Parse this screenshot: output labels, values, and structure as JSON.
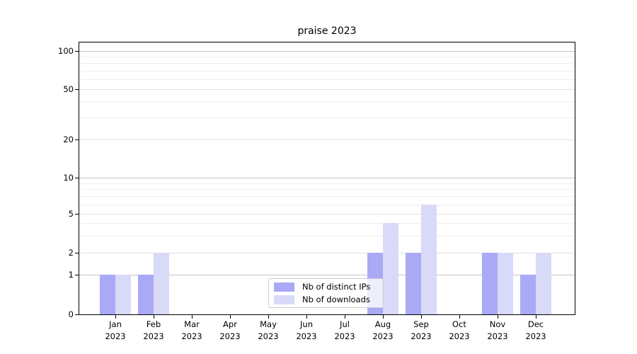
{
  "window": {
    "background": "#ffffff"
  },
  "chart_data": {
    "type": "bar",
    "title": "praise 2023",
    "categories": [
      "Jan 2023",
      "Feb 2023",
      "Mar 2023",
      "Apr 2023",
      "May 2023",
      "Jun 2023",
      "Jul 2023",
      "Aug 2023",
      "Sep 2023",
      "Oct 2023",
      "Nov 2023",
      "Dec 2023"
    ],
    "series": [
      {
        "name": "Nb of distinct IPs",
        "color": "#a9a9f6",
        "values": [
          1,
          1,
          0,
          0,
          0,
          0,
          0,
          2,
          2,
          0,
          2,
          1
        ]
      },
      {
        "name": "Nb of downloads",
        "color": "#d9d9f8",
        "values": [
          1,
          2,
          0,
          0,
          0,
          0,
          0,
          4,
          6,
          0,
          2,
          2
        ]
      }
    ],
    "yscale": "symlog",
    "ylim": [
      0,
      120
    ],
    "y_ticks": [
      0,
      1,
      2,
      5,
      10,
      20,
      50,
      100
    ],
    "y_tick_labels": [
      "0",
      "1",
      "2",
      "5",
      "10",
      "20",
      "50",
      "100"
    ],
    "y_minor_ticks": [
      3,
      4,
      6,
      7,
      8,
      9,
      30,
      40,
      60,
      70,
      80,
      90
    ],
    "xlabel": "",
    "ylabel": "",
    "grid": true,
    "legend_position": "lower center"
  },
  "legend": {
    "items": [
      {
        "label": "Nb of distinct IPs",
        "color": "#a9a9f6"
      },
      {
        "label": "Nb of downloads",
        "color": "#d9d9f8"
      }
    ]
  },
  "colors": {
    "bar_distinct_ips": "#a9a9f6",
    "bar_downloads": "#d9d9f8",
    "axis": "#000000",
    "grid_strong": "#c3c3c3",
    "grid_mid": "#e1e1e1",
    "grid_minor": "#ededed",
    "legend_border": "#cccccc",
    "text": "#000000"
  }
}
